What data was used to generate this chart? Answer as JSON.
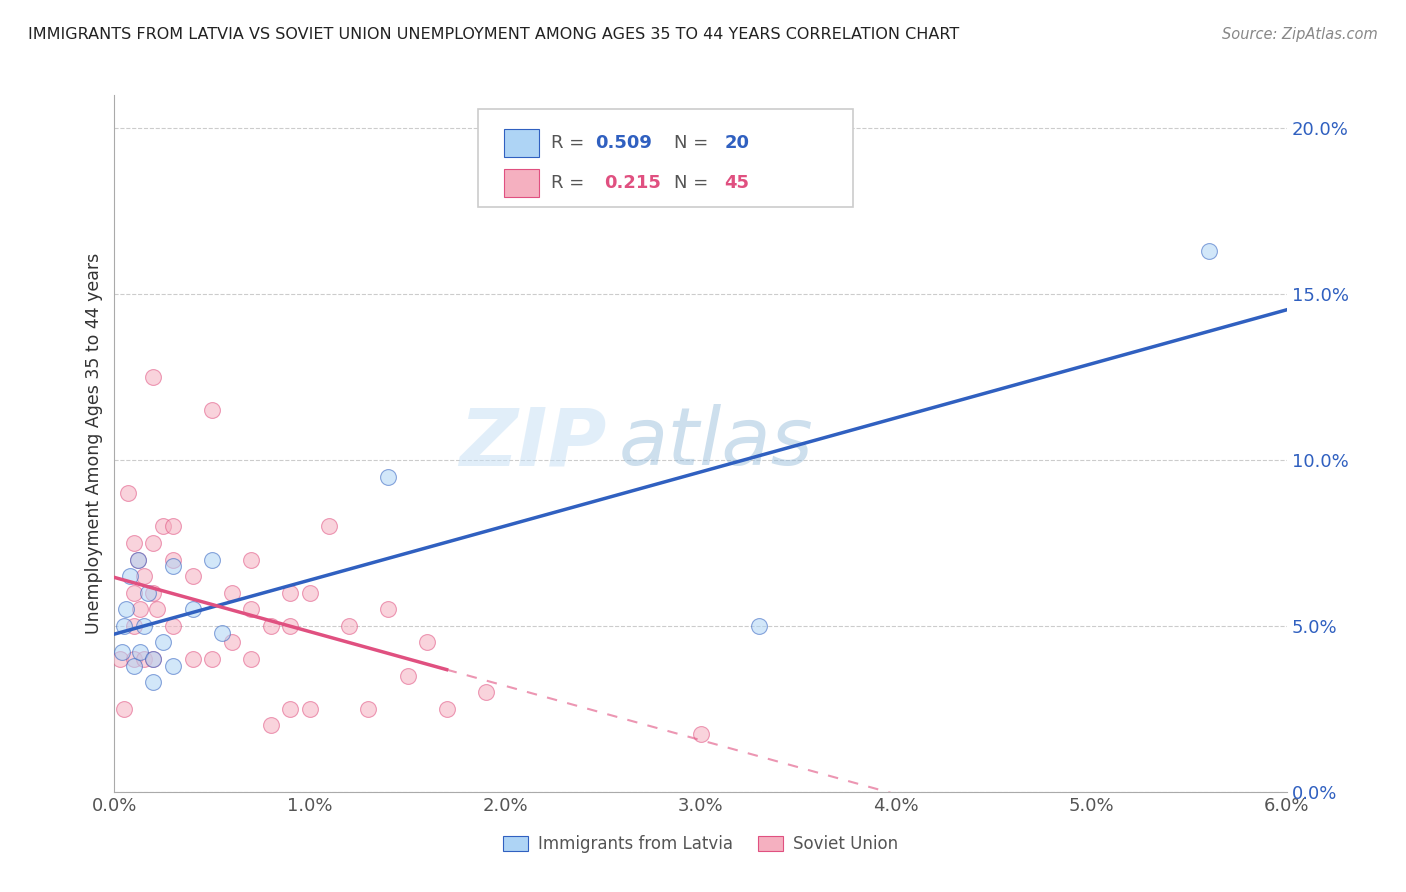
{
  "title": "IMMIGRANTS FROM LATVIA VS SOVIET UNION UNEMPLOYMENT AMONG AGES 35 TO 44 YEARS CORRELATION CHART",
  "source": "Source: ZipAtlas.com",
  "ylabel": "Unemployment Among Ages 35 to 44 years",
  "xmin": 0.0,
  "xmax": 0.06,
  "ymin": 0.0,
  "ymax": 0.21,
  "yticks": [
    0.0,
    0.05,
    0.1,
    0.15,
    0.2
  ],
  "xticks": [
    0.0,
    0.01,
    0.02,
    0.03,
    0.04,
    0.05,
    0.06
  ],
  "latvia_color": "#aed4f5",
  "soviet_color": "#f5b0c0",
  "latvia_line_color": "#3060c0",
  "soviet_line_color": "#e05080",
  "legend_r_latvia": "0.509",
  "legend_n_latvia": "20",
  "legend_r_soviet": "0.215",
  "legend_n_soviet": "45",
  "latvia_x": [
    0.0004,
    0.0005,
    0.0006,
    0.0008,
    0.001,
    0.0012,
    0.0013,
    0.0015,
    0.0017,
    0.002,
    0.002,
    0.0025,
    0.003,
    0.003,
    0.004,
    0.005,
    0.0055,
    0.014,
    0.033,
    0.056
  ],
  "latvia_y": [
    0.042,
    0.05,
    0.055,
    0.065,
    0.038,
    0.07,
    0.042,
    0.05,
    0.06,
    0.04,
    0.033,
    0.045,
    0.038,
    0.068,
    0.055,
    0.07,
    0.048,
    0.095,
    0.05,
    0.163
  ],
  "soviet_x": [
    0.0003,
    0.0005,
    0.0007,
    0.001,
    0.001,
    0.001,
    0.001,
    0.0012,
    0.0013,
    0.0015,
    0.0015,
    0.002,
    0.002,
    0.002,
    0.002,
    0.0022,
    0.0025,
    0.003,
    0.003,
    0.003,
    0.004,
    0.004,
    0.005,
    0.005,
    0.006,
    0.006,
    0.007,
    0.007,
    0.007,
    0.008,
    0.008,
    0.009,
    0.009,
    0.009,
    0.01,
    0.01,
    0.011,
    0.012,
    0.013,
    0.014,
    0.015,
    0.016,
    0.017,
    0.019,
    0.03
  ],
  "soviet_y": [
    0.04,
    0.025,
    0.09,
    0.075,
    0.06,
    0.05,
    0.04,
    0.07,
    0.055,
    0.065,
    0.04,
    0.125,
    0.075,
    0.06,
    0.04,
    0.055,
    0.08,
    0.08,
    0.07,
    0.05,
    0.065,
    0.04,
    0.115,
    0.04,
    0.06,
    0.045,
    0.07,
    0.055,
    0.04,
    0.05,
    0.02,
    0.06,
    0.05,
    0.025,
    0.06,
    0.025,
    0.08,
    0.05,
    0.025,
    0.055,
    0.035,
    0.045,
    0.025,
    0.03,
    0.0175
  ],
  "watermark_zip": "ZIP",
  "watermark_atlas": "atlas",
  "background_color": "#ffffff",
  "scatter_size": 130,
  "scatter_alpha": 0.55,
  "scatter_linewidth": 0.8,
  "line_width": 2.5
}
